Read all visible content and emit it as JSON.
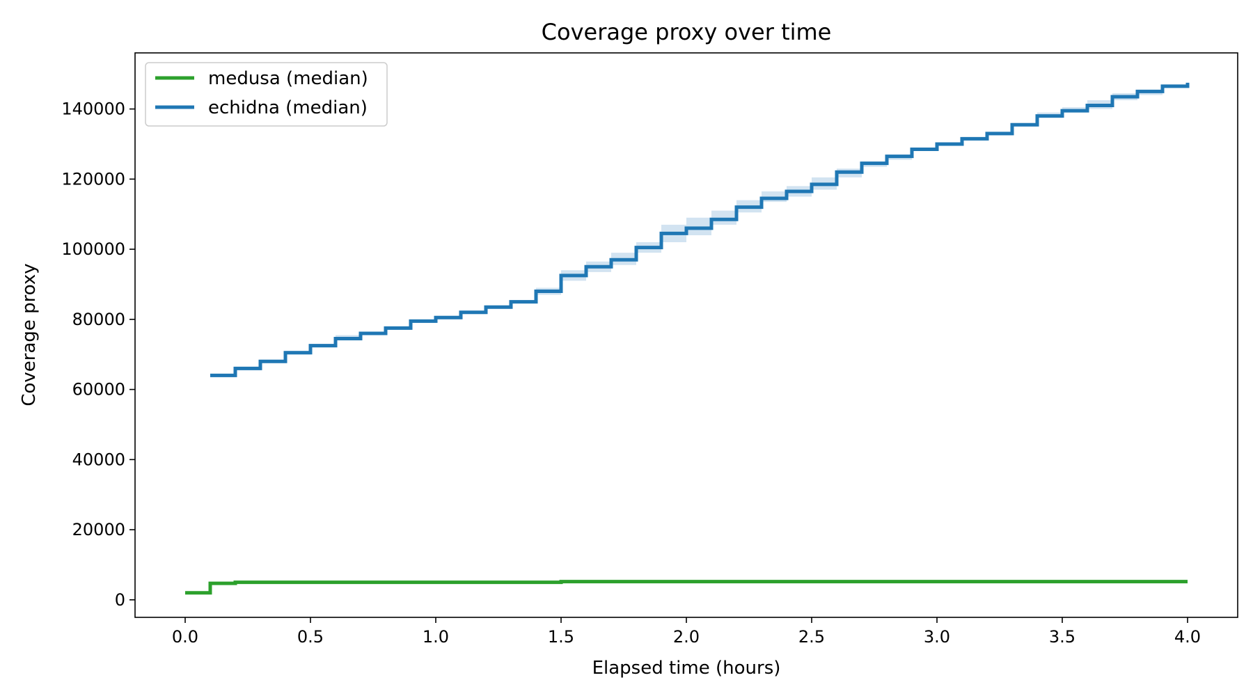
{
  "chart_data": {
    "type": "line",
    "title": "Coverage proxy over time",
    "xlabel": "Elapsed time (hours)",
    "ylabel": "Coverage proxy",
    "xlim": [
      -0.2,
      4.2
    ],
    "ylim": [
      -5000,
      156000
    ],
    "xticks": [
      0.0,
      0.5,
      1.0,
      1.5,
      2.0,
      2.5,
      3.0,
      3.5,
      4.0
    ],
    "xtick_labels": [
      "0.0",
      "0.5",
      "1.0",
      "1.5",
      "2.0",
      "2.5",
      "3.0",
      "3.5",
      "4.0"
    ],
    "yticks": [
      0,
      20000,
      40000,
      60000,
      80000,
      100000,
      120000,
      140000
    ],
    "ytick_labels": [
      "0",
      "20000",
      "40000",
      "60000",
      "80000",
      "100000",
      "120000",
      "140000"
    ],
    "grid": false,
    "legend_position": "top-left",
    "step": "post",
    "series": [
      {
        "name": "medusa (median)",
        "color": "#2ca02c",
        "x": [
          0.0,
          0.1,
          0.2,
          0.3,
          0.4,
          0.5,
          0.6,
          0.7,
          0.8,
          0.9,
          1.0,
          1.1,
          1.2,
          1.3,
          1.4,
          1.5,
          1.6,
          1.7,
          1.8,
          1.9,
          2.0,
          2.1,
          2.2,
          2.3,
          2.4,
          2.5,
          2.6,
          2.7,
          2.8,
          2.9,
          3.0,
          3.1,
          3.2,
          3.3,
          3.4,
          3.5,
          3.6,
          3.7,
          3.8,
          3.9,
          4.0
        ],
        "y": [
          2000,
          4700,
          5000,
          5000,
          5000,
          5000,
          5000,
          5000,
          5000,
          5000,
          5000,
          5000,
          5000,
          5000,
          5000,
          5200,
          5200,
          5200,
          5200,
          5200,
          5200,
          5200,
          5200,
          5200,
          5200,
          5200,
          5200,
          5200,
          5200,
          5200,
          5200,
          5200,
          5200,
          5200,
          5200,
          5200,
          5200,
          5200,
          5200,
          5200,
          5200
        ]
      },
      {
        "name": "echidna (median)",
        "color": "#1f77b4",
        "band_color": "#a6c8e4",
        "x": [
          0.1,
          0.2,
          0.3,
          0.4,
          0.5,
          0.6,
          0.7,
          0.8,
          0.9,
          1.0,
          1.1,
          1.2,
          1.3,
          1.4,
          1.5,
          1.6,
          1.7,
          1.8,
          1.9,
          2.0,
          2.1,
          2.2,
          2.3,
          2.4,
          2.5,
          2.6,
          2.7,
          2.8,
          2.9,
          3.0,
          3.1,
          3.2,
          3.3,
          3.4,
          3.5,
          3.6,
          3.7,
          3.8,
          3.9,
          4.0
        ],
        "y": [
          64000,
          66000,
          68000,
          70500,
          72500,
          74500,
          76000,
          77500,
          79500,
          80500,
          82000,
          83500,
          85000,
          88000,
          92500,
          95000,
          97000,
          100500,
          104500,
          106000,
          108500,
          112000,
          114500,
          116500,
          118500,
          122000,
          124500,
          126500,
          128500,
          130000,
          131500,
          133000,
          135500,
          138000,
          139500,
          141000,
          143500,
          145000,
          146500,
          147500
        ],
        "band_low": [
          63500,
          65500,
          67500,
          70000,
          72000,
          74000,
          75500,
          77000,
          79000,
          80000,
          81500,
          83000,
          84500,
          87000,
          91000,
          93500,
          95500,
          99000,
          102000,
          104000,
          107000,
          110500,
          113500,
          115000,
          117000,
          120500,
          123500,
          125500,
          128000,
          129500,
          131000,
          132500,
          135000,
          137500,
          139000,
          140000,
          142500,
          144000,
          146000,
          147000
        ],
        "band_high": [
          64500,
          66500,
          68500,
          71000,
          73000,
          75500,
          76500,
          78000,
          80000,
          81000,
          82500,
          84000,
          85500,
          89000,
          94000,
          96500,
          99000,
          102000,
          107000,
          109000,
          111000,
          114000,
          116500,
          118000,
          120500,
          123000,
          125000,
          127000,
          129000,
          130500,
          132000,
          133500,
          136000,
          139000,
          140500,
          142500,
          144500,
          145500,
          147000,
          148000
        ]
      }
    ]
  }
}
